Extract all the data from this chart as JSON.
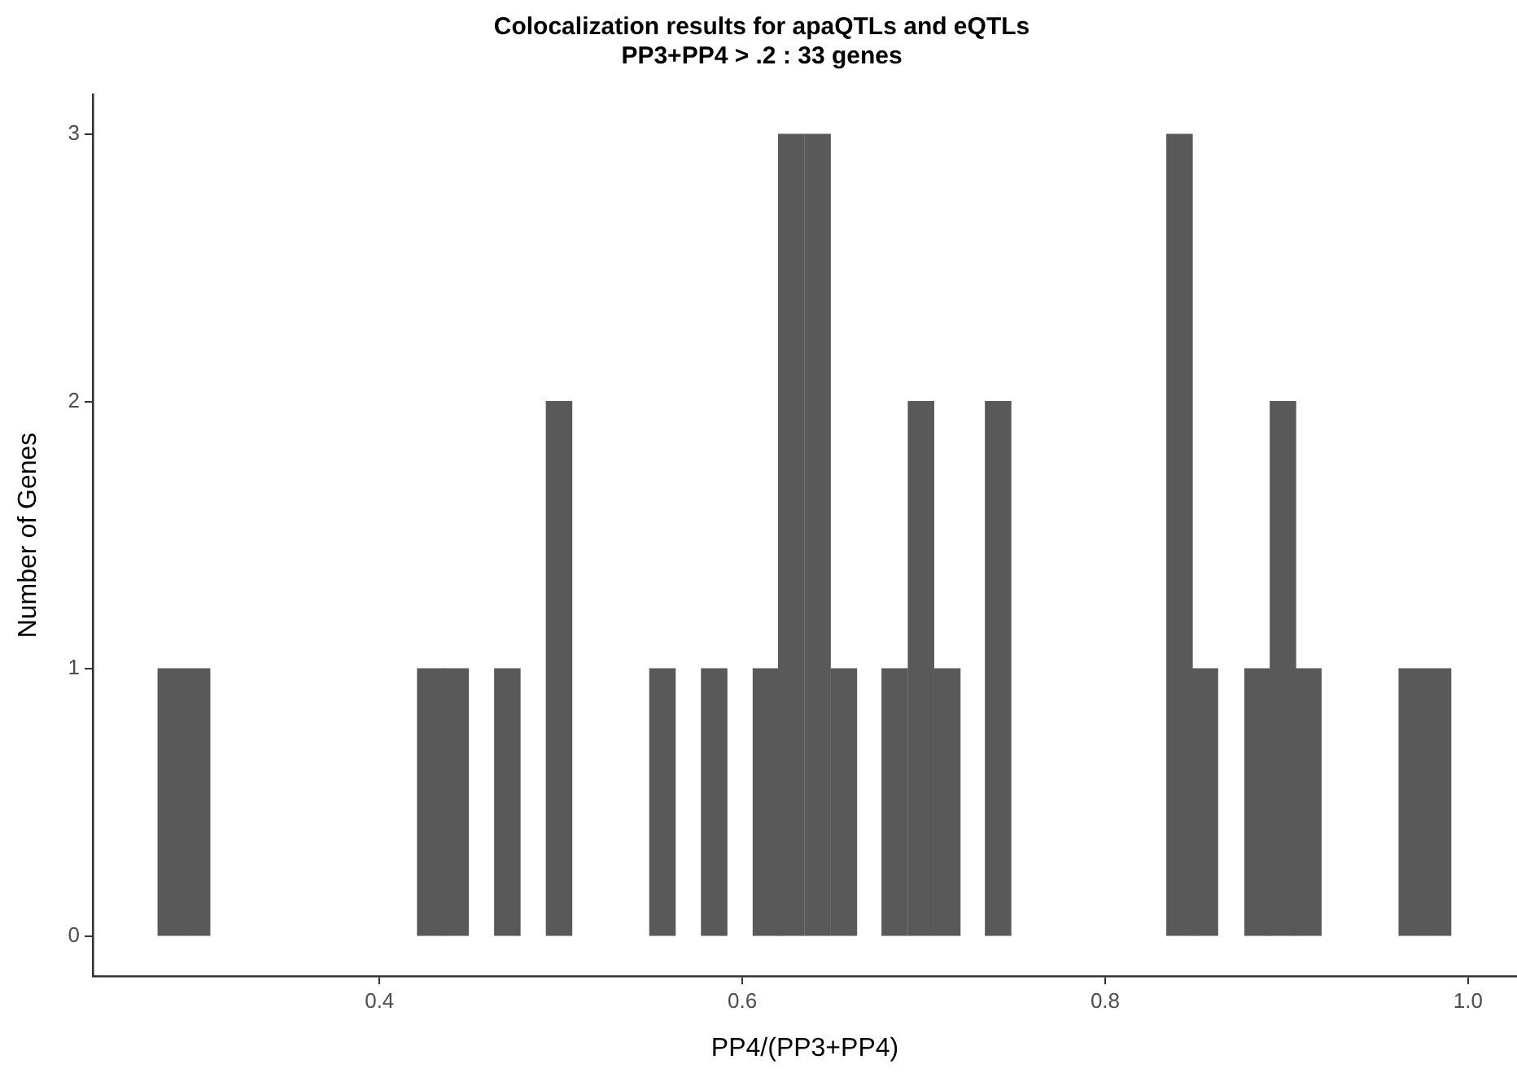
{
  "chart_data": {
    "type": "histogram",
    "title": "Colocalization results for apaQTLs and eQTLs",
    "subtitle": "PP3+PP4 > .2 : 33 genes",
    "xlabel": "PP4/(PP3+PP4)",
    "ylabel": "Number of Genes",
    "bins": [
      0.278,
      0.292,
      0.307,
      0.421,
      0.435,
      0.449,
      0.463,
      0.478,
      0.492,
      0.506,
      0.549,
      0.563,
      0.577,
      0.592,
      0.606,
      0.62,
      0.634,
      0.649,
      0.663,
      0.677,
      0.691,
      0.706,
      0.72,
      0.734,
      0.748,
      0.834,
      0.848,
      0.862,
      0.877,
      0.891,
      0.905,
      0.919,
      0.962,
      0.976,
      0.991
    ],
    "values": [
      1,
      1,
      0,
      1,
      1,
      0,
      1,
      0,
      2,
      0,
      1,
      0,
      1,
      0,
      1,
      3,
      3,
      1,
      0,
      1,
      2,
      1,
      0,
      2,
      0,
      3,
      1,
      0,
      1,
      2,
      1,
      0,
      1,
      1
    ],
    "color": "#595959",
    "xlim": [
      0.242,
      1.027
    ],
    "xticks": [
      0.4,
      0.6,
      0.8,
      {
        "value": 1,
        "label": "1.0"
      }
    ],
    "ylim": [
      -0.15,
      3.15
    ],
    "yticks": [
      0,
      1,
      2,
      3
    ],
    "grid": false,
    "legend": false
  }
}
